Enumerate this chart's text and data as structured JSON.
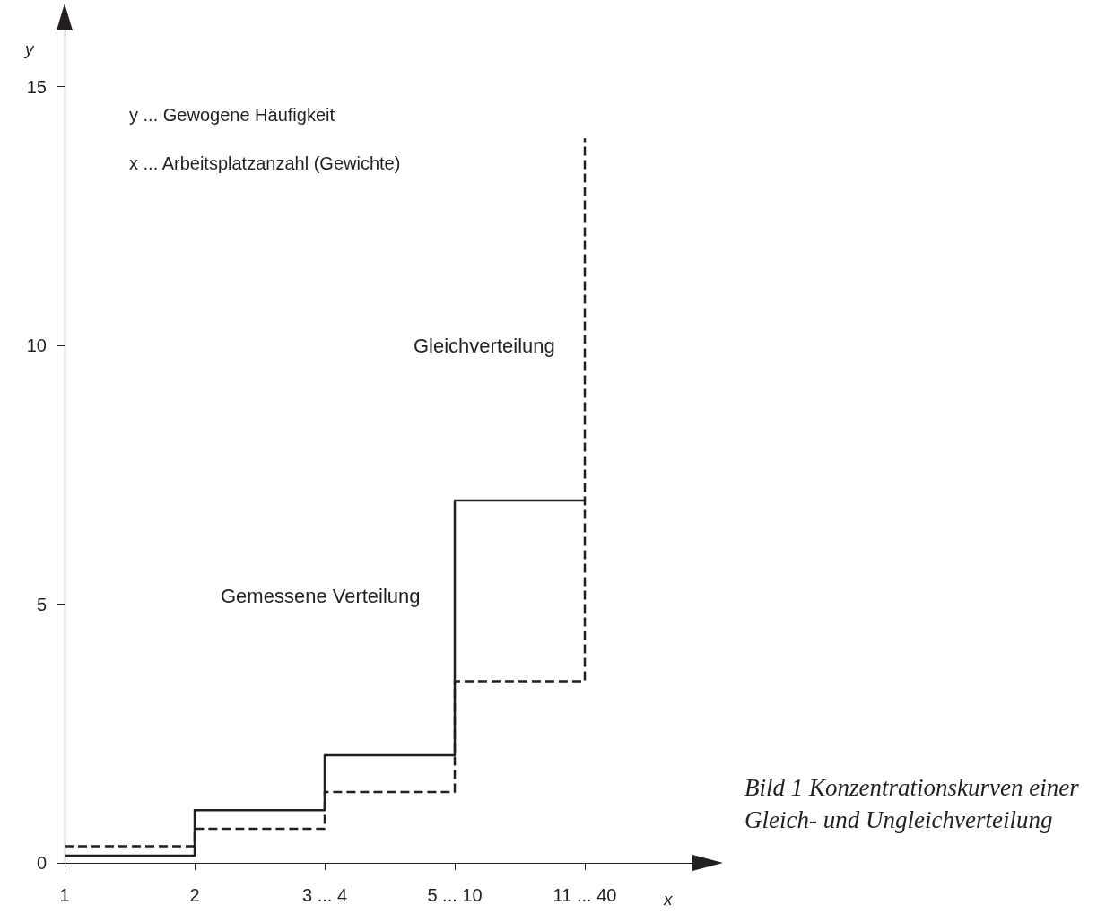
{
  "chart_data": {
    "type": "step",
    "xlabel": "x",
    "ylabel": "y",
    "categories": [
      "1",
      "2",
      "3 ... 4",
      "5 ... 10",
      "11 ... 40"
    ],
    "series": [
      {
        "name": "Gemessene Verteilung",
        "color": "#231f20",
        "line_style": "solid",
        "values": [
          0.14,
          1.02,
          2.08,
          7.0,
          7.0
        ]
      },
      {
        "name": "Gleichverteilung",
        "color": "#231f20",
        "line_style": "dashed",
        "values": [
          0.32,
          0.66,
          1.37,
          3.51,
          14.0
        ]
      }
    ],
    "ylim": [
      0,
      16.5
    ],
    "yticks": [
      0,
      5,
      10,
      15
    ],
    "grid": false,
    "legend": false,
    "marker": "none",
    "annotations": [
      "y ... Gewogene Häufigkeit",
      "x ... Arbeitsplatzanzahl (Gewichte)",
      "Bild 1 Konzentrationskurven einer Gleich- und Ungleichverteilung"
    ]
  }
}
